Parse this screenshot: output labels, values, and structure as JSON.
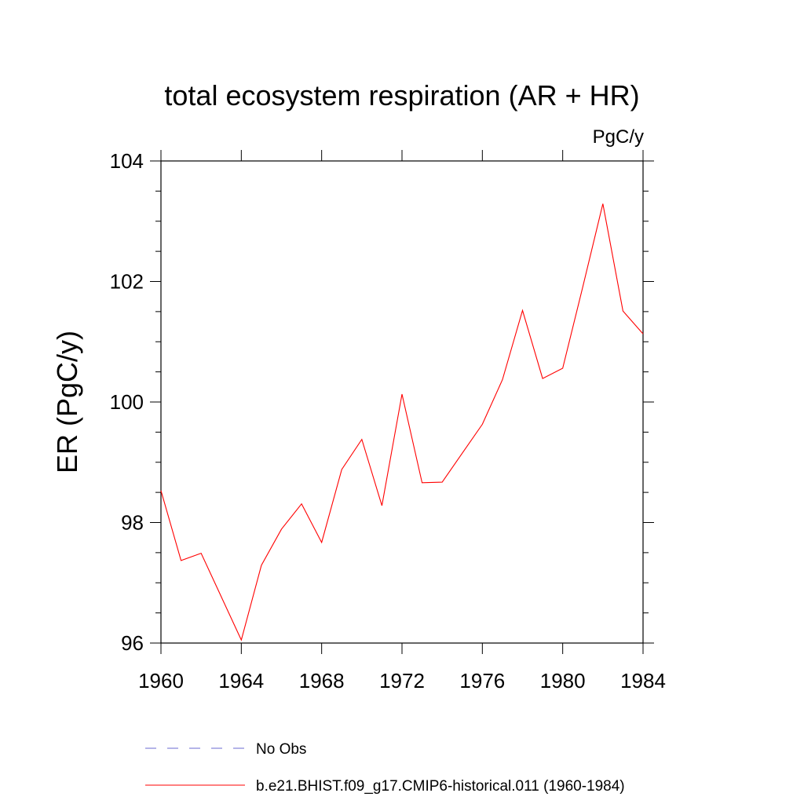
{
  "chart_data": {
    "type": "line",
    "title": "total ecosystem respiration (AR + HR)",
    "units_label": "PgC/y",
    "xlabel": "",
    "ylabel": "ER  (PgC/y)",
    "xlim": [
      1960,
      1984
    ],
    "ylim": [
      96,
      104
    ],
    "x_ticks": [
      1960,
      1964,
      1968,
      1972,
      1976,
      1980,
      1984
    ],
    "x_tick_labels": [
      "1960",
      "1964",
      "1968",
      "1972",
      "1976",
      "1980",
      "1984"
    ],
    "y_ticks": [
      96,
      98,
      100,
      102,
      104
    ],
    "y_tick_labels": [
      "96",
      "98",
      "100",
      "102",
      "104"
    ],
    "grid": false,
    "legend_position": "bottom",
    "legend": [
      {
        "label": "No Obs",
        "color": "#6a6ad0",
        "style": "dashed"
      },
      {
        "label": "b.e21.BHIST.f09_g17.CMIP6-historical.011 (1960-1984)",
        "color": "#ff0000",
        "style": "solid"
      }
    ],
    "series": [
      {
        "name": "b.e21.BHIST.f09_g17.CMIP6-historical.011 (1960-1984)",
        "color": "#ff0000",
        "x": [
          1960,
          1961,
          1962,
          1963,
          1964,
          1965,
          1966,
          1967,
          1968,
          1969,
          1970,
          1971,
          1972,
          1973,
          1974,
          1975,
          1976,
          1977,
          1978,
          1979,
          1980,
          1981,
          1982,
          1983,
          1984
        ],
        "values": [
          98.53,
          97.37,
          97.49,
          96.77,
          96.05,
          97.29,
          97.89,
          98.31,
          97.67,
          98.88,
          99.38,
          98.28,
          100.13,
          98.66,
          98.67,
          99.15,
          99.63,
          100.37,
          101.52,
          100.39,
          100.56,
          101.91,
          103.29,
          101.51,
          101.13
        ]
      }
    ]
  }
}
